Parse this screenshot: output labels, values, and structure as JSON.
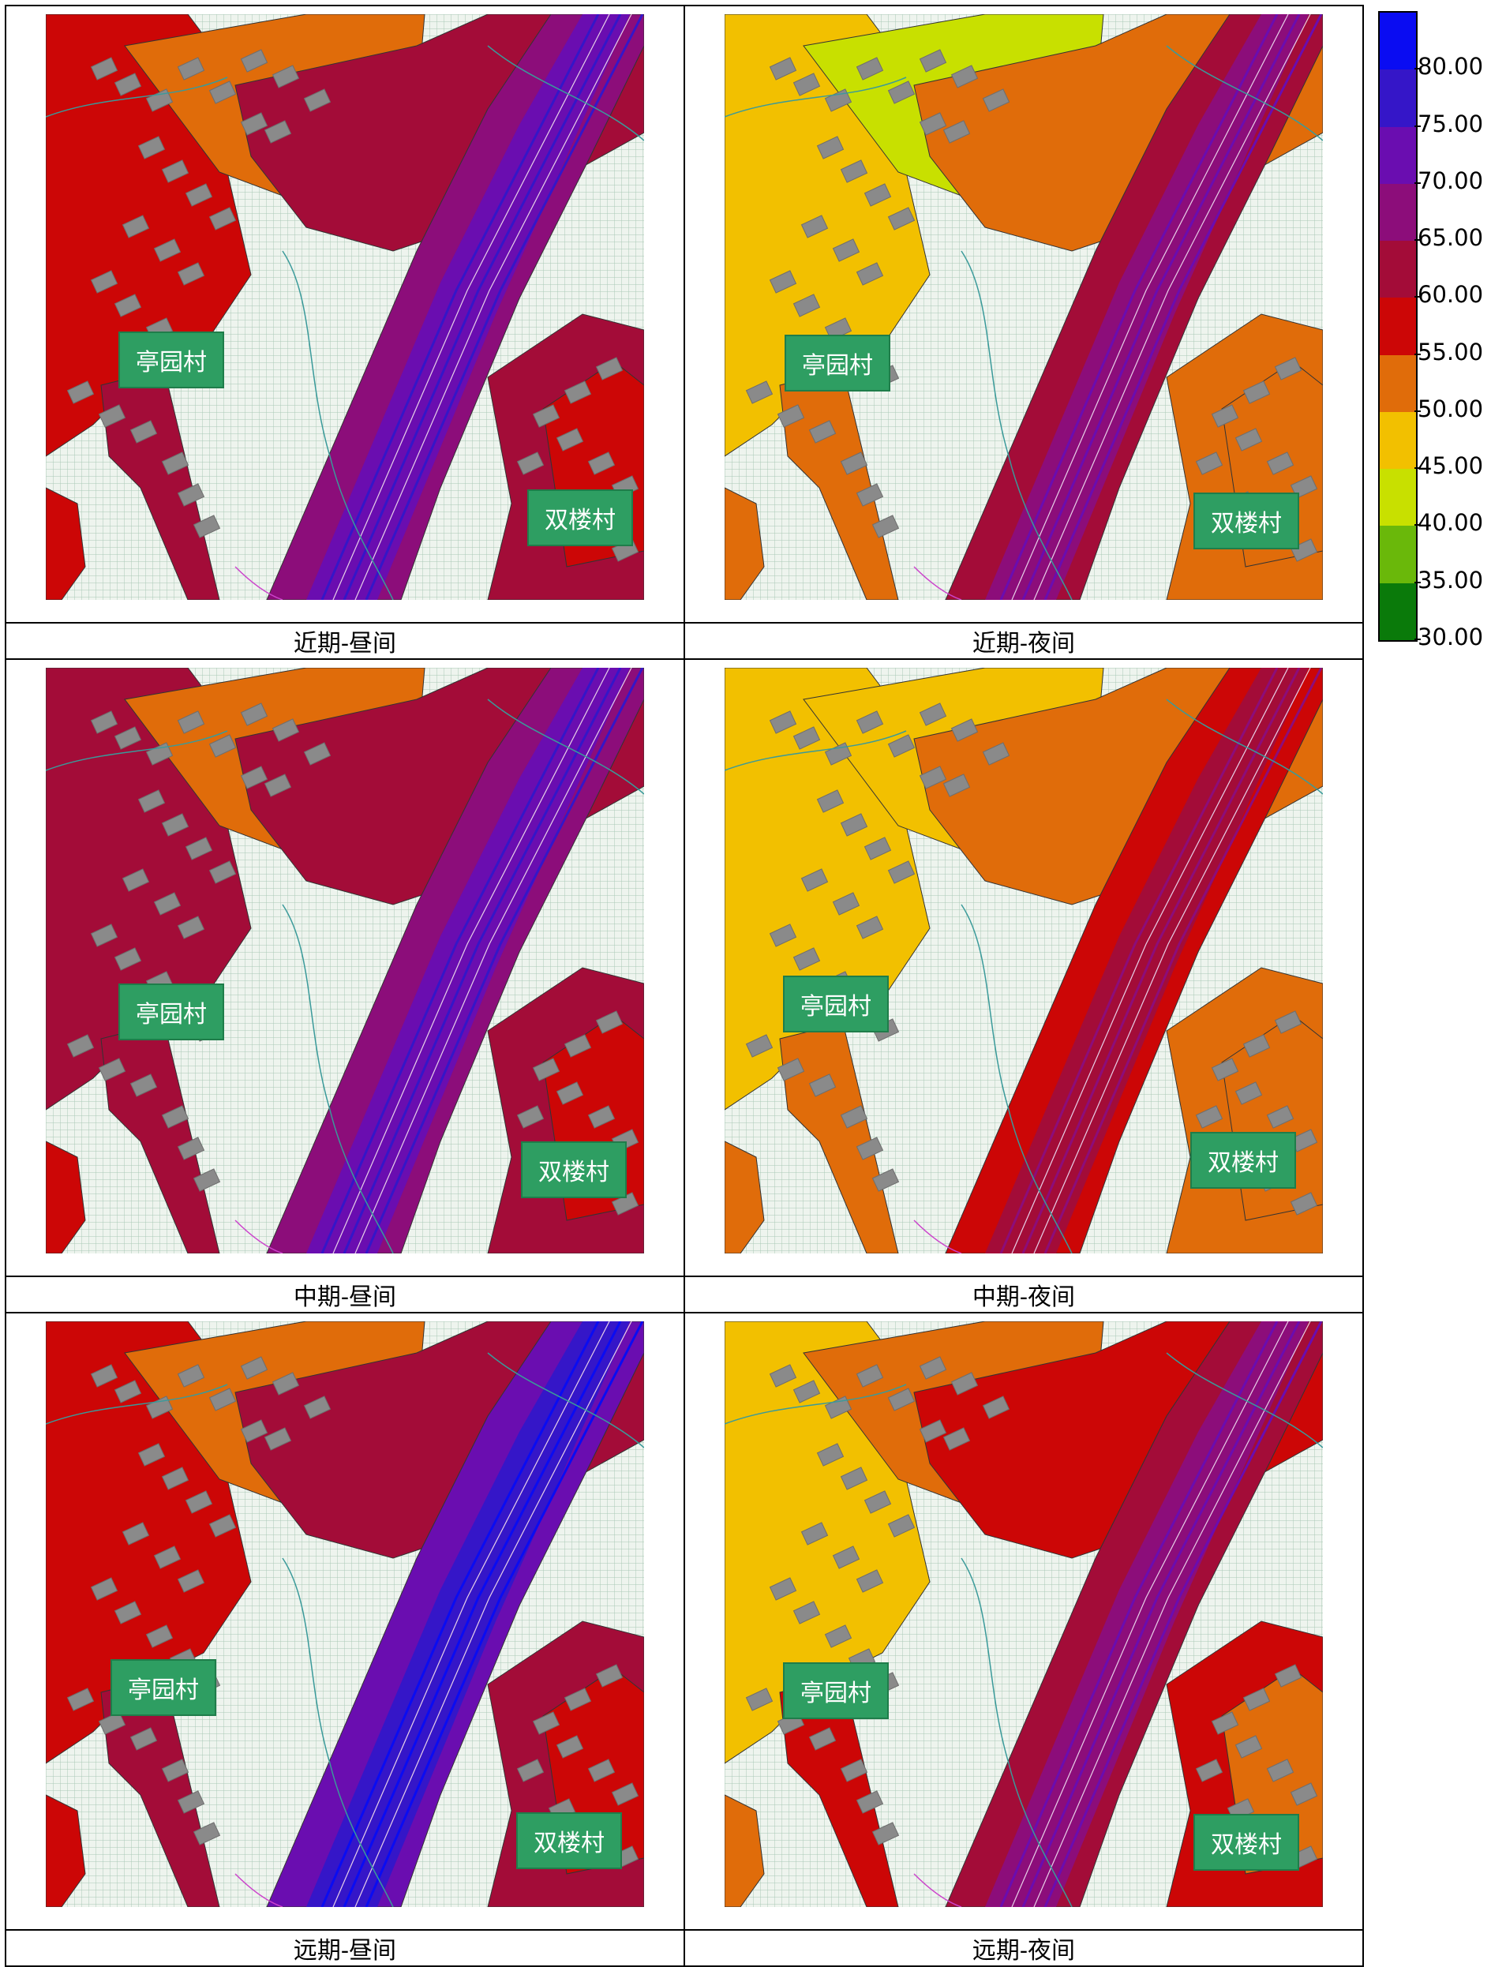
{
  "legend": {
    "levels": [
      {
        "label": "80.00",
        "color": "#0a0cf2"
      },
      {
        "label": "75.00",
        "color": "#3516c8"
      },
      {
        "label": "70.00",
        "color": "#6a0db0"
      },
      {
        "label": "65.00",
        "color": "#8c0d7a"
      },
      {
        "label": "60.00",
        "color": "#a30c38"
      },
      {
        "label": "55.00",
        "color": "#cc0606"
      },
      {
        "label": "50.00",
        "color": "#e06c0a"
      },
      {
        "label": "45.00",
        "color": "#f2c000"
      },
      {
        "label": "40.00",
        "color": "#c8e000"
      },
      {
        "label": "35.00",
        "color": "#6ab80a"
      },
      {
        "label": "30.00",
        "color": "#0a7a0a"
      }
    ]
  },
  "panels": [
    {
      "caption": "近期-昼间",
      "village_a": "亭园村",
      "village_b": "双楼村",
      "scheme": "day1"
    },
    {
      "caption": "近期-夜间",
      "village_a": "亭园村",
      "village_b": "双楼村",
      "scheme": "night1"
    },
    {
      "caption": "中期-昼间",
      "village_a": "亭园村",
      "village_b": "双楼村",
      "scheme": "day2"
    },
    {
      "caption": "中期-夜间",
      "village_a": "亭园村",
      "village_b": "双楼村",
      "scheme": "night2"
    },
    {
      "caption": "远期-昼间",
      "village_a": "亭园村",
      "village_b": "双楼村",
      "scheme": "day3"
    },
    {
      "caption": "远期-夜间",
      "village_a": "亭园村",
      "village_b": "双楼村",
      "scheme": "night3"
    }
  ]
}
